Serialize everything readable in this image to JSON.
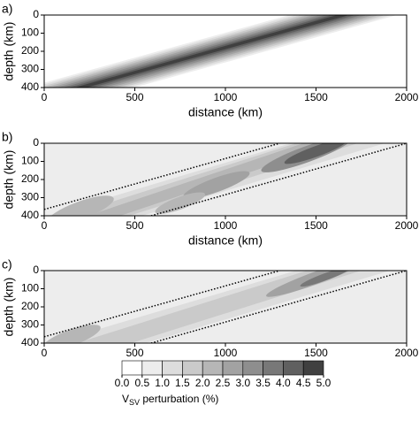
{
  "chart_data": [
    {
      "type": "contour",
      "panel": "a)",
      "xlabel": "distance (km)",
      "ylabel": "depth (km)",
      "xlim": [
        0,
        2000
      ],
      "ylim": [
        400,
        0
      ],
      "xticks": [
        0,
        500,
        1000,
        1500,
        2000
      ],
      "yticks": [
        0,
        100,
        200,
        300,
        400
      ]
    },
    {
      "type": "contour",
      "panel": "b)",
      "xlabel": "distance (km)",
      "ylabel": "depth (km)",
      "xlim": [
        0,
        2000
      ],
      "ylim": [
        400,
        0
      ],
      "xticks": [
        0,
        500,
        1000,
        1500,
        2000
      ],
      "yticks": [
        0,
        100,
        200,
        300,
        400
      ]
    },
    {
      "type": "contour",
      "panel": "c)",
      "xlabel": "distance (km)",
      "ylabel": "depth (km)",
      "xlim": [
        0,
        2000
      ],
      "ylim": [
        400,
        0
      ],
      "xticks": [
        0,
        500,
        1000,
        1500,
        2000
      ],
      "yticks": [
        0,
        100,
        200,
        300,
        400
      ]
    }
  ],
  "colorbar": {
    "ticks": [
      {
        "value": 0,
        "label": "0.0"
      },
      0.5,
      {
        "value": 1,
        "label": "1.0"
      },
      1.5,
      {
        "value": 2,
        "label": "2.0"
      },
      2.5,
      {
        "value": 3,
        "label": "3.0"
      },
      3.5,
      {
        "value": 4,
        "label": "4.0"
      },
      4.5,
      {
        "value": 5,
        "label": "5.0"
      }
    ],
    "colors": [
      "#ffffff",
      "#ededed",
      "#dddddd",
      "#cacaca",
      "#b6b6b6",
      "#a2a2a2",
      "#8e8e8e",
      "#787878",
      "#606060",
      "#404040"
    ],
    "label": {
      "main": "V",
      "sub": "SV",
      "rest": " perturbation (%)"
    }
  }
}
